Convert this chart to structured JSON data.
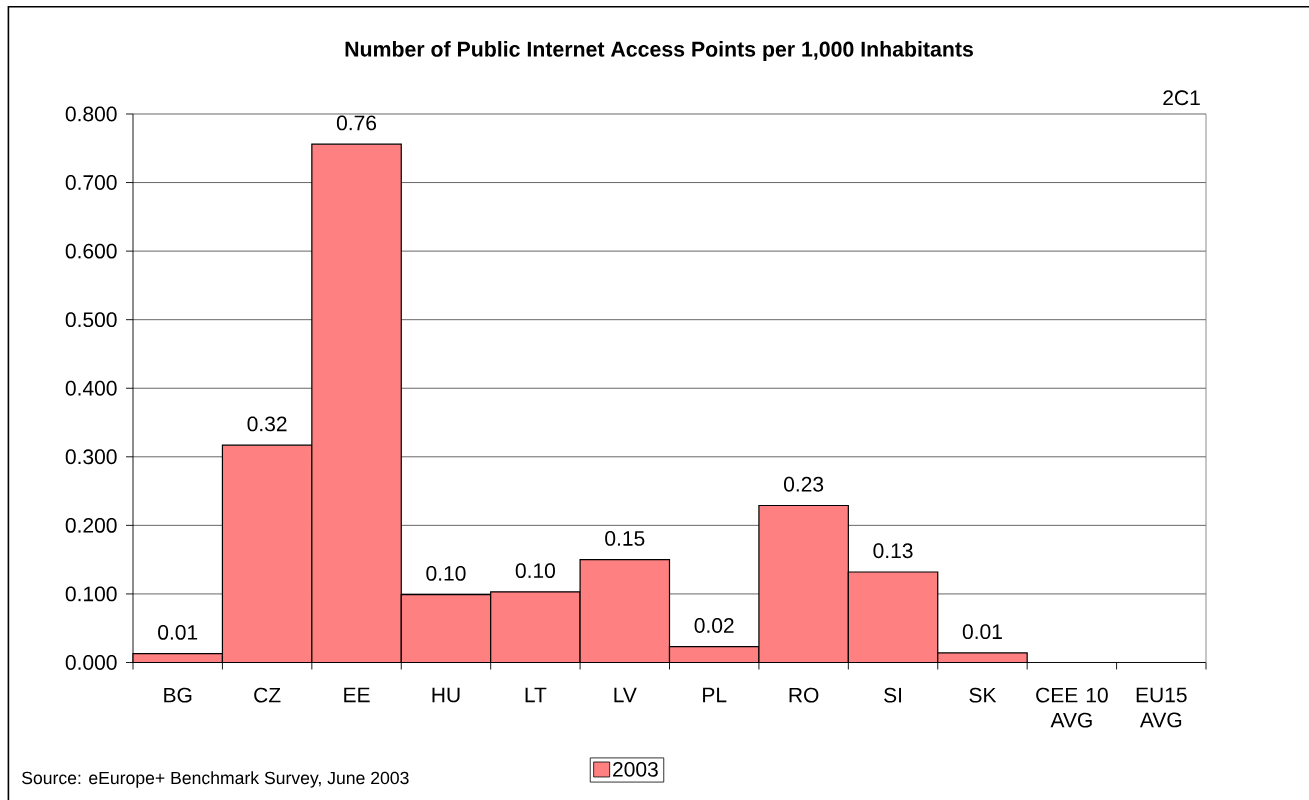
{
  "chart_data": {
    "type": "bar",
    "title": "Number of Public Internet Access Points per 1,000 Inhabitants",
    "categories": [
      "BG",
      "CZ",
      "EE",
      "HU",
      "LT",
      "LV",
      "PL",
      "RO",
      "SI",
      "SK",
      "CEE 10 AVG",
      "EU15 AVG"
    ],
    "series": [
      {
        "name": "2003",
        "color": "#ff8080",
        "values": [
          0.013,
          0.317,
          0.756,
          0.099,
          0.103,
          0.15,
          0.023,
          0.229,
          0.132,
          0.014,
          null,
          null
        ],
        "value_labels": [
          "0.01",
          "0.32",
          "0.76",
          "0.10",
          "0.10",
          "0.15",
          "0.02",
          "0.23",
          "0.13",
          "0.01",
          null,
          null
        ]
      }
    ],
    "ylim": [
      0,
      0.8
    ],
    "yticks": [
      {
        "value": 0,
        "label": "0.000"
      },
      {
        "value": 0.1,
        "label": "0.100"
      },
      {
        "value": 0.2,
        "label": "0.200"
      },
      {
        "value": 0.3,
        "label": "0.300"
      },
      {
        "value": 0.4,
        "label": "0.400"
      },
      {
        "value": 0.5,
        "label": "0.500"
      },
      {
        "value": 0.6,
        "label": "0.600"
      },
      {
        "value": 0.7,
        "label": "0.700"
      },
      {
        "value": 0.8,
        "label": "0.800"
      }
    ],
    "grid": "y",
    "legend": "bottom",
    "annotations": [
      "2C1",
      "Source: eEurope+ Benchmark Survey, June 2003"
    ]
  }
}
